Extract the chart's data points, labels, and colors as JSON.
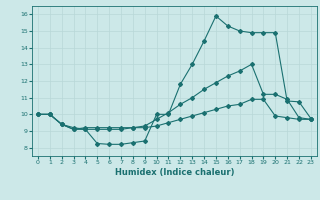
{
  "xlabel": "Humidex (Indice chaleur)",
  "xlim": [
    -0.5,
    23.5
  ],
  "ylim": [
    7.5,
    16.5
  ],
  "xticks": [
    0,
    1,
    2,
    3,
    4,
    5,
    6,
    7,
    8,
    9,
    10,
    11,
    12,
    13,
    14,
    15,
    16,
    17,
    18,
    19,
    20,
    21,
    22,
    23
  ],
  "yticks": [
    8,
    9,
    10,
    11,
    12,
    13,
    14,
    15,
    16
  ],
  "bg_color": "#cce8e8",
  "line_color": "#1a7070",
  "grid_color": "#b8d8d8",
  "line1_x": [
    0,
    1,
    2,
    3,
    4,
    5,
    6,
    7,
    8,
    9,
    10,
    11,
    12,
    13,
    14,
    15,
    16,
    17,
    18,
    19,
    20,
    21,
    22,
    23
  ],
  "line1_y": [
    10.0,
    10.0,
    9.4,
    9.1,
    9.1,
    8.25,
    8.2,
    8.2,
    8.3,
    8.4,
    10.0,
    10.0,
    11.8,
    13.0,
    14.4,
    15.9,
    15.3,
    15.0,
    14.9,
    14.9,
    14.9,
    10.8,
    10.75,
    9.75
  ],
  "line2_x": [
    0,
    1,
    2,
    3,
    4,
    5,
    6,
    7,
    8,
    9,
    10,
    11,
    12,
    13,
    14,
    15,
    16,
    17,
    18,
    19,
    20,
    21,
    22,
    23
  ],
  "line2_y": [
    10.0,
    10.0,
    9.4,
    9.2,
    9.1,
    9.1,
    9.1,
    9.1,
    9.2,
    9.3,
    9.7,
    10.1,
    10.6,
    11.0,
    11.5,
    11.9,
    12.3,
    12.6,
    13.0,
    11.2,
    11.2,
    10.9,
    9.8,
    9.7
  ],
  "line3_x": [
    0,
    1,
    2,
    3,
    4,
    5,
    6,
    7,
    8,
    9,
    10,
    11,
    12,
    13,
    14,
    15,
    16,
    17,
    18,
    19,
    20,
    21,
    22,
    23
  ],
  "line3_y": [
    10.0,
    10.0,
    9.4,
    9.1,
    9.2,
    9.2,
    9.2,
    9.2,
    9.2,
    9.2,
    9.3,
    9.5,
    9.7,
    9.9,
    10.1,
    10.3,
    10.5,
    10.6,
    10.9,
    10.9,
    9.9,
    9.8,
    9.7,
    9.7
  ]
}
